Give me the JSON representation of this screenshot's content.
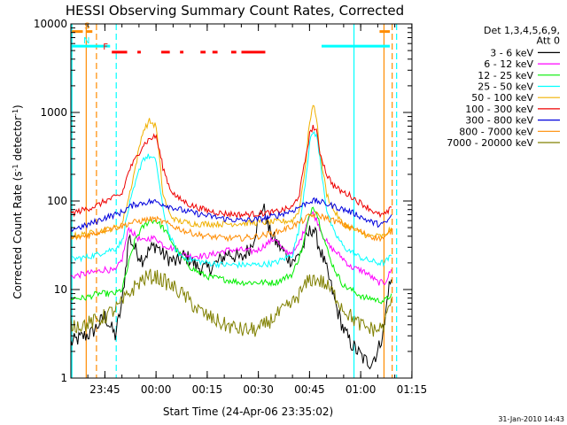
{
  "chart_data": {
    "type": "line",
    "title": "HESSI Observing Summary Count Rates, Corrected",
    "xlabel": "Start Time (24-Apr-06 23:35:02)",
    "ylabel_main": "Corrected Count Rate (s",
    "ylabel_sup": "-1",
    "ylabel_mid": " detector",
    "ylabel_end": ")",
    "x_unit": "minutes since start",
    "xlim": [
      0,
      100
    ],
    "ylim": [
      1,
      10000
    ],
    "yscale": "log",
    "x_ticks": [
      {
        "x": 9.97,
        "label": "23:45"
      },
      {
        "x": 24.97,
        "label": "00:00"
      },
      {
        "x": 39.97,
        "label": "00:15"
      },
      {
        "x": 54.97,
        "label": "00:30"
      },
      {
        "x": 69.97,
        "label": "00:45"
      },
      {
        "x": 84.97,
        "label": "01:00"
      },
      {
        "x": 99.97,
        "label": "01:15"
      }
    ],
    "y_ticks": [
      {
        "y": 1,
        "label": "1"
      },
      {
        "y": 10,
        "label": "10"
      },
      {
        "y": 100,
        "label": "100"
      },
      {
        "y": 1000,
        "label": "1000"
      },
      {
        "y": 10000,
        "label": "10000"
      }
    ],
    "legend_header": [
      "Det 1,3,4,5,6,9,",
      "Att 0"
    ],
    "legend_position": "top-right, outside plot",
    "series": [
      {
        "name": "3 - 6 keV",
        "color": "#000000",
        "x": [
          0,
          4,
          6,
          8,
          10,
          13,
          15,
          17,
          19,
          21,
          23,
          25,
          27,
          29,
          31,
          33,
          35,
          37,
          40,
          43,
          46,
          50,
          53,
          55,
          56,
          57,
          58,
          60,
          62,
          64,
          66,
          68,
          70,
          71,
          72,
          74,
          76,
          78,
          80,
          82,
          84,
          86,
          88,
          90,
          92,
          93,
          94
        ],
        "y": [
          2.5,
          3,
          3.2,
          4,
          5,
          3,
          7,
          40,
          28,
          22,
          28,
          32,
          25,
          22,
          20,
          24,
          22,
          18,
          17,
          20,
          26,
          22,
          32,
          60,
          85,
          75,
          48,
          35,
          28,
          22,
          22,
          30,
          45,
          50,
          38,
          22,
          12,
          6,
          3.5,
          2.5,
          2,
          1.6,
          1.5,
          2,
          4,
          10,
          13
        ]
      },
      {
        "name": "6 - 12 keV",
        "color": "#ff00ff",
        "x": [
          0,
          4,
          8,
          10,
          13,
          15,
          17,
          19,
          21,
          23,
          25,
          27,
          29,
          31,
          33,
          35,
          37,
          40,
          43,
          46,
          50,
          53,
          55,
          57,
          58,
          60,
          62,
          64,
          66,
          68,
          70,
          71,
          72,
          74,
          76,
          78,
          80,
          82,
          84,
          86,
          88,
          90,
          92,
          93,
          94
        ],
        "y": [
          14,
          15,
          16,
          17,
          16,
          22,
          50,
          40,
          35,
          38,
          38,
          32,
          30,
          28,
          25,
          24,
          24,
          24,
          26,
          28,
          28,
          27,
          28,
          32,
          34,
          38,
          28,
          26,
          28,
          42,
          70,
          72,
          62,
          40,
          30,
          26,
          22,
          18,
          17,
          16,
          14,
          12,
          12,
          14,
          17
        ]
      },
      {
        "name": "12 - 25 keV",
        "color": "#00ee00",
        "x": [
          0,
          4,
          8,
          10,
          13,
          15,
          17,
          19,
          21,
          23,
          25,
          27,
          29,
          31,
          33,
          35,
          37,
          40,
          45,
          50,
          55,
          60,
          65,
          68,
          70,
          71,
          72,
          74,
          76,
          78,
          80,
          82,
          84,
          86,
          88,
          90,
          92,
          93,
          94
        ],
        "y": [
          8,
          8,
          9,
          9,
          9,
          10,
          20,
          38,
          50,
          60,
          60,
          50,
          38,
          28,
          22,
          18,
          16,
          14,
          13,
          12,
          12,
          12,
          15,
          30,
          70,
          90,
          75,
          40,
          22,
          15,
          11,
          10,
          9,
          8,
          8,
          7.5,
          7.5,
          8,
          9
        ]
      },
      {
        "name": "25 - 50 keV",
        "color": "#00ffff",
        "x": [
          0,
          4,
          8,
          10,
          13,
          15,
          17,
          19,
          21,
          23,
          25,
          27,
          29,
          31,
          33,
          35,
          37,
          40,
          45,
          50,
          55,
          60,
          65,
          67,
          69,
          70,
          71,
          72,
          73,
          75,
          77,
          79,
          80,
          82,
          84,
          86,
          88,
          90,
          92,
          93,
          94
        ],
        "y": [
          22,
          23,
          25,
          27,
          29,
          35,
          85,
          160,
          300,
          320,
          280,
          80,
          40,
          27,
          23,
          22,
          21,
          20,
          19,
          19,
          19,
          20,
          25,
          50,
          200,
          450,
          600,
          560,
          300,
          80,
          45,
          35,
          30,
          27,
          24,
          22,
          21,
          20,
          20,
          22,
          24
        ]
      },
      {
        "name": "50 - 100 keV",
        "color": "#f0b000",
        "x": [
          0,
          4,
          8,
          10,
          13,
          15,
          17,
          19,
          21,
          23,
          25,
          27,
          29,
          31,
          33,
          35,
          37,
          40,
          45,
          50,
          55,
          60,
          65,
          67,
          69,
          70,
          71,
          72,
          73,
          75,
          77,
          79,
          80,
          82,
          84,
          86,
          88,
          90,
          92,
          93,
          94
        ],
        "y": [
          40,
          42,
          45,
          47,
          50,
          55,
          110,
          250,
          600,
          800,
          700,
          120,
          70,
          60,
          58,
          56,
          55,
          55,
          55,
          56,
          57,
          58,
          60,
          80,
          300,
          800,
          1200,
          900,
          350,
          120,
          80,
          60,
          55,
          50,
          45,
          42,
          40,
          40,
          40,
          45,
          50
        ]
      },
      {
        "name": "100 - 300 keV",
        "color": "#ee0000",
        "x": [
          0,
          4,
          8,
          10,
          13,
          15,
          17,
          19,
          21,
          23,
          25,
          27,
          29,
          31,
          33,
          35,
          37,
          40,
          45,
          50,
          55,
          60,
          65,
          67,
          69,
          70,
          71,
          72,
          73,
          75,
          77,
          79,
          80,
          82,
          84,
          86,
          88,
          90,
          92,
          93,
          94
        ],
        "y": [
          72,
          80,
          90,
          100,
          110,
          120,
          220,
          300,
          420,
          500,
          540,
          240,
          140,
          110,
          100,
          90,
          85,
          78,
          72,
          70,
          72,
          75,
          85,
          120,
          340,
          560,
          700,
          600,
          360,
          200,
          150,
          130,
          125,
          115,
          100,
          90,
          80,
          70,
          70,
          75,
          85
        ]
      },
      {
        "name": "300 - 800 keV",
        "color": "#0000dd",
        "x": [
          0,
          4,
          8,
          10,
          13,
          15,
          17,
          19,
          21,
          23,
          25,
          28,
          31,
          34,
          37,
          40,
          45,
          50,
          55,
          60,
          65,
          68,
          70,
          72,
          74,
          76,
          78,
          80,
          82,
          84,
          86,
          88,
          90,
          92,
          93,
          94
        ],
        "y": [
          48,
          52,
          60,
          65,
          70,
          75,
          85,
          92,
          95,
          98,
          98,
          90,
          82,
          76,
          72,
          68,
          63,
          60,
          62,
          68,
          78,
          90,
          100,
          100,
          95,
          90,
          85,
          80,
          75,
          70,
          63,
          58,
          55,
          55,
          60,
          70
        ]
      },
      {
        "name": "800 - 7000 keV",
        "color": "#ff8c00",
        "x": [
          0,
          4,
          8,
          10,
          13,
          15,
          17,
          19,
          21,
          23,
          25,
          28,
          31,
          34,
          37,
          40,
          45,
          50,
          55,
          60,
          65,
          68,
          70,
          72,
          74,
          76,
          78,
          80,
          82,
          84,
          86,
          88,
          90,
          92,
          93,
          94
        ],
        "y": [
          38,
          40,
          44,
          48,
          50,
          52,
          56,
          58,
          60,
          62,
          62,
          56,
          50,
          45,
          42,
          40,
          38,
          38,
          40,
          44,
          52,
          60,
          68,
          70,
          66,
          62,
          58,
          54,
          50,
          47,
          43,
          40,
          38,
          38,
          42,
          48
        ]
      },
      {
        "name": "7000 - 20000 keV",
        "color": "#808000",
        "x": [
          0,
          4,
          8,
          10,
          13,
          15,
          17,
          19,
          21,
          23,
          25,
          28,
          31,
          34,
          37,
          40,
          45,
          50,
          55,
          60,
          65,
          68,
          70,
          72,
          74,
          76,
          78,
          80,
          82,
          84,
          86,
          88,
          90,
          92,
          93,
          94
        ],
        "y": [
          4,
          4,
          4.5,
          5,
          6,
          7,
          9,
          11,
          13,
          14,
          14,
          12,
          10,
          8,
          6,
          5,
          4,
          3.5,
          3.5,
          5,
          7,
          10,
          13,
          13,
          12,
          10,
          8,
          6,
          5,
          4.2,
          3.8,
          3.6,
          3.5,
          4,
          6,
          8
        ]
      }
    ],
    "indicator_bands": [
      {
        "label": "S",
        "color": "#ff8c00",
        "segments": [
          [
            0.3,
            3.5
          ],
          [
            4.5,
            6.3
          ],
          [
            90.5,
            93.5
          ]
        ],
        "y": 8200
      },
      {
        "label": "N",
        "color": "#00ffff",
        "segments": [
          [
            0,
            11.5
          ],
          [
            73.5,
            93.5
          ]
        ],
        "y": 5600
      },
      {
        "label": "F",
        "color": "#ff0000",
        "segments": [
          [
            12,
            16.5
          ],
          [
            19.5,
            20.5
          ],
          [
            26.5,
            29
          ],
          [
            32,
            33
          ],
          [
            38,
            39.5
          ],
          [
            41.5,
            43
          ],
          [
            47,
            48.5
          ],
          [
            50,
            57
          ]
        ],
        "y": 4800
      }
    ],
    "vertical_markers": [
      {
        "x": 0.3,
        "color": "#00ffff",
        "style": "solid"
      },
      {
        "x": 4.5,
        "color": "#ff8c00",
        "style": "solid"
      },
      {
        "x": 7.5,
        "color": "#ff8c00",
        "style": "dashed"
      },
      {
        "x": 13.3,
        "color": "#00ffff",
        "style": "dashed"
      },
      {
        "x": 83.0,
        "color": "#00ffff",
        "style": "solid"
      },
      {
        "x": 91.8,
        "color": "#ff8c00",
        "style": "solid"
      },
      {
        "x": 94.2,
        "color": "#ff8c00",
        "style": "dashed"
      },
      {
        "x": 95.5,
        "color": "#00ffff",
        "style": "dashed"
      }
    ],
    "timestamp": "31-Jan-2010 14:43"
  }
}
